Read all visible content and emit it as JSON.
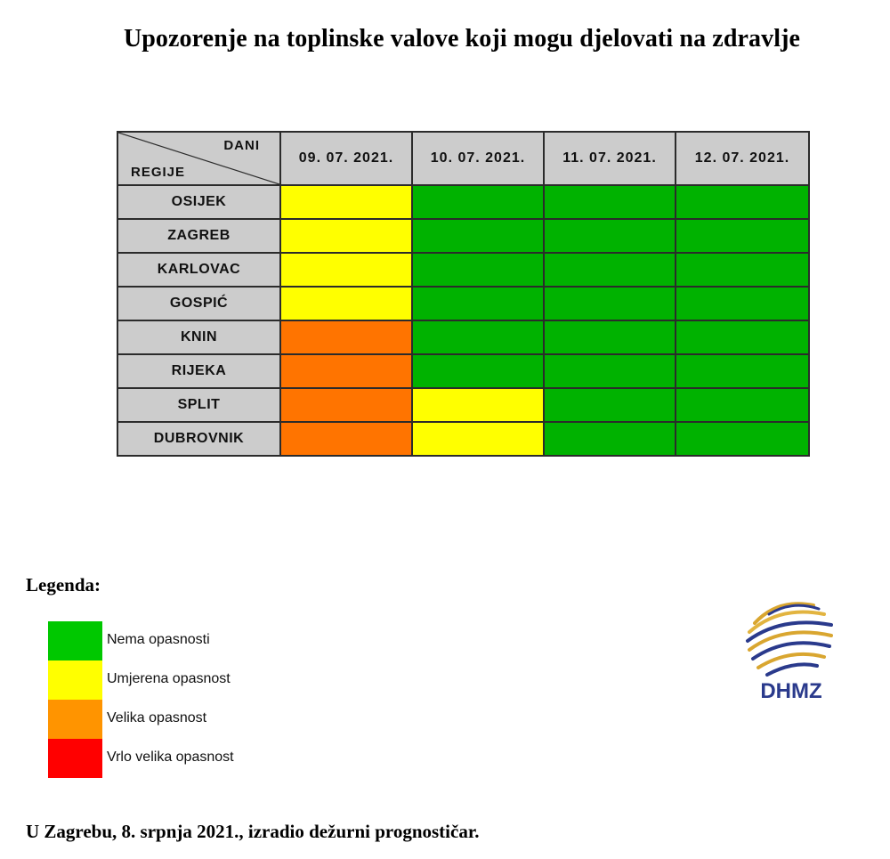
{
  "title": "Upozorenje na toplinske valove koji mogu djelovati na zdravlje",
  "table": {
    "corner_top": "DANI",
    "corner_bottom": "REGIJE",
    "dates": [
      "09. 07. 2021.",
      "10. 07. 2021.",
      "11. 07. 2021.",
      "12. 07. 2021."
    ],
    "rows": [
      {
        "region": "OSIJEK",
        "levels": [
          "yellow",
          "green",
          "green",
          "green"
        ]
      },
      {
        "region": "ZAGREB",
        "levels": [
          "yellow",
          "green",
          "green",
          "green"
        ]
      },
      {
        "region": "KARLOVAC",
        "levels": [
          "yellow",
          "green",
          "green",
          "green"
        ]
      },
      {
        "region": "GOSPIĆ",
        "levels": [
          "yellow",
          "green",
          "green",
          "green"
        ]
      },
      {
        "region": "KNIN",
        "levels": [
          "orange",
          "green",
          "green",
          "green"
        ]
      },
      {
        "region": "RIJEKA",
        "levels": [
          "orange",
          "green",
          "green",
          "green"
        ]
      },
      {
        "region": "SPLIT",
        "levels": [
          "orange",
          "yellow",
          "green",
          "green"
        ]
      },
      {
        "region": "DUBROVNIK",
        "levels": [
          "orange",
          "yellow",
          "green",
          "green"
        ]
      }
    ]
  },
  "colors": {
    "green": "#00b200",
    "yellow": "#ffff00",
    "orange": "#ff7400",
    "legend_orange": "#ff9400",
    "red": "#ff0000",
    "header_grey": "#cccccc",
    "logo_navy": "#2a3a8c",
    "logo_gold": "#d9a630"
  },
  "legend": {
    "title": "Legenda:",
    "items": [
      {
        "label": "Nema opasnosti",
        "color": "#00c800"
      },
      {
        "label": "Umjerena opasnost",
        "color": "#ffff00"
      },
      {
        "label": "Velika opasnost",
        "color": "#ff9400"
      },
      {
        "label": "Vrlo velika opasnost",
        "color": "#ff0000"
      }
    ]
  },
  "logo": {
    "text": "DHMZ"
  },
  "footer": "U Zagrebu, 8. srpnja 2021., izradio dežurni prognostičar."
}
